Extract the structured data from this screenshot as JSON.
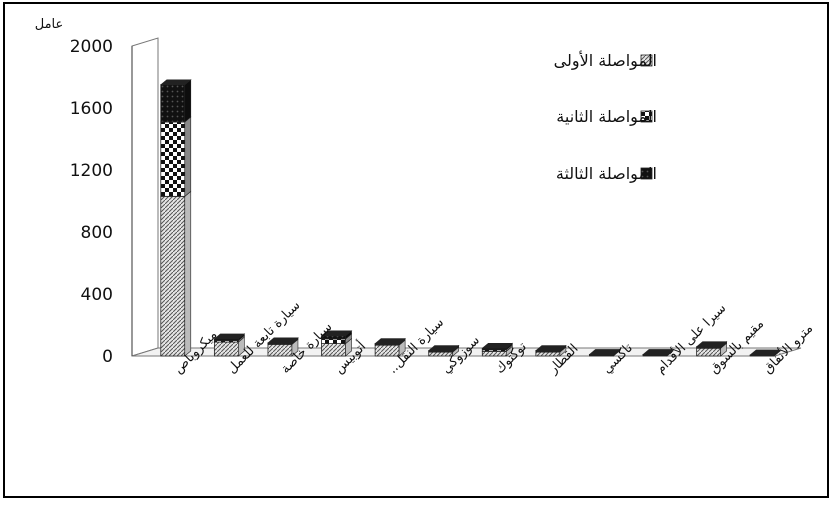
{
  "chart_data": {
    "type": "bar",
    "stacked": true,
    "ylabel": "عامل",
    "ylim": [
      0,
      2000
    ],
    "yticks": [
      "0",
      "400",
      "800",
      "1200",
      "1600",
      "2000"
    ],
    "categories": [
      "ميكروباص",
      "سيارة تابعة للعمل",
      "سيارة خاصة",
      "أتوبيس",
      "سيارة النقل..",
      "سوزوكي",
      "توكتوك",
      "القطار",
      "تاكسي",
      "سيرا على الأقدام",
      "مقيم بالسوق",
      "مترو الأنفاق"
    ],
    "series": [
      {
        "name": "المواصلة الأولى",
        "values": [
          1030,
          90,
          75,
          80,
          70,
          25,
          30,
          25,
          5,
          5,
          50,
          3
        ]
      },
      {
        "name": "المواصلة الثانية",
        "values": [
          480,
          10,
          5,
          30,
          5,
          5,
          10,
          5,
          3,
          3,
          5,
          2
        ]
      },
      {
        "name": "المواصلة الثالثة",
        "values": [
          240,
          10,
          5,
          20,
          5,
          5,
          10,
          5,
          2,
          2,
          5,
          2
        ]
      }
    ],
    "grid": false,
    "legend_position": "top-right",
    "colors": {
      "series_1": "#c8c8c8",
      "series_2": "#ffffff",
      "series_3": "#1a1a1a",
      "axis": "#555555",
      "frame": "#000000"
    }
  }
}
